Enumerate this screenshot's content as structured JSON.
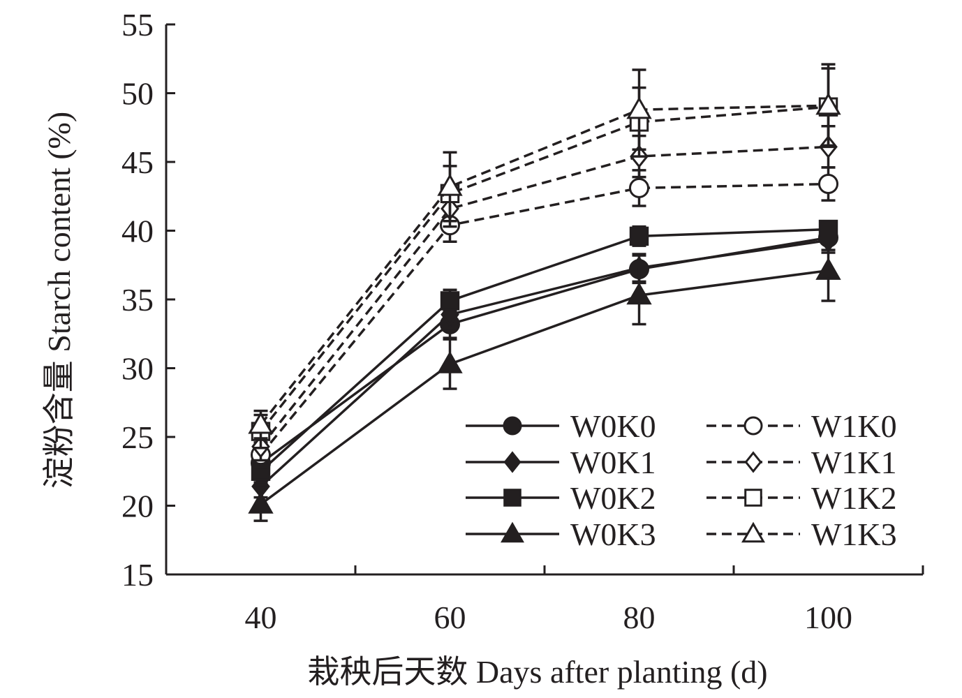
{
  "chart_data": {
    "type": "line",
    "title": "",
    "xlabel": "栽秧后天数 Days after planting (d)",
    "ylabel": "淀粉含量 Starch content (%)",
    "x": [
      40,
      60,
      80,
      100
    ],
    "x_ticks": [
      "40",
      "60",
      "80",
      "100"
    ],
    "y_ticks": [
      "15",
      "20",
      "25",
      "30",
      "35",
      "40",
      "45",
      "50",
      "55"
    ],
    "ylim": [
      15,
      55
    ],
    "grid": false,
    "legend_position": "bottom-right",
    "series": [
      {
        "name": "W0K0",
        "marker": "circle",
        "filled": true,
        "dashed": false,
        "values": [
          23.1,
          33.2,
          37.2,
          39.5
        ],
        "errors": [
          0.8,
          1.0,
          1.0,
          0.9
        ]
      },
      {
        "name": "W0K1",
        "marker": "diamond",
        "filled": true,
        "dashed": false,
        "values": [
          21.4,
          33.9,
          37.3,
          39.3
        ],
        "errors": [
          0.8,
          1.0,
          1.0,
          0.9
        ]
      },
      {
        "name": "W0K2",
        "marker": "square",
        "filled": true,
        "dashed": false,
        "values": [
          22.5,
          34.9,
          39.6,
          40.1
        ],
        "errors": [
          0.8,
          0.8,
          0.7,
          0.6
        ]
      },
      {
        "name": "W0K3",
        "marker": "triangle",
        "filled": true,
        "dashed": false,
        "values": [
          20.1,
          30.3,
          35.3,
          37.1
        ],
        "errors": [
          1.2,
          1.8,
          2.1,
          2.2
        ]
      },
      {
        "name": "W1K0",
        "marker": "circle",
        "filled": false,
        "dashed": true,
        "values": [
          23.7,
          40.4,
          43.1,
          43.4
        ],
        "errors": [
          0.9,
          1.2,
          1.3,
          1.2
        ]
      },
      {
        "name": "W1K1",
        "marker": "diamond",
        "filled": false,
        "dashed": true,
        "values": [
          24.3,
          41.6,
          45.4,
          46.1
        ],
        "errors": [
          1.0,
          1.3,
          1.5,
          1.5
        ]
      },
      {
        "name": "W1K2",
        "marker": "square",
        "filled": false,
        "dashed": true,
        "values": [
          25.4,
          42.7,
          47.9,
          49.0
        ],
        "errors": [
          1.2,
          2.0,
          2.5,
          2.8
        ]
      },
      {
        "name": "W1K3",
        "marker": "triangle",
        "filled": false,
        "dashed": true,
        "values": [
          25.9,
          43.2,
          48.8,
          49.1
        ],
        "errors": [
          1.0,
          2.5,
          2.9,
          3.0
        ]
      }
    ]
  },
  "colors": {
    "ink": "#231f20",
    "background": "#ffffff"
  }
}
